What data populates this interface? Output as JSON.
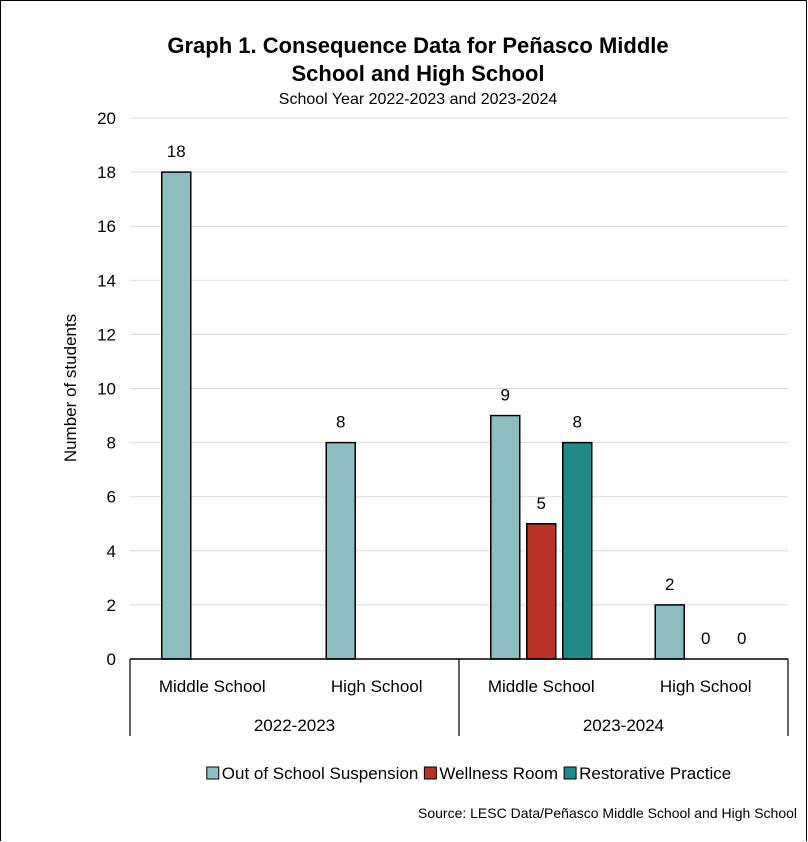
{
  "chart_data": {
    "type": "bar",
    "title_line1": "Graph 1. Consequence Data for Peñasco Middle",
    "title_line2": "School and High School",
    "subtitle": "School Year 2022-2023 and 2023-2024",
    "ylabel": "Number of students",
    "ylim": [
      0,
      20
    ],
    "yticks": [
      "0",
      "2",
      "4",
      "6",
      "8",
      "10",
      "12",
      "14",
      "16",
      "18",
      "20"
    ],
    "groups": [
      {
        "label": "2022-2023",
        "categories": [
          "Middle School",
          "High School"
        ]
      },
      {
        "label": "2023-2024",
        "categories": [
          "Middle School",
          "High School"
        ]
      }
    ],
    "categories": [
      "Middle School",
      "High School",
      "Middle School",
      "High School"
    ],
    "series": [
      {
        "name": "Out of School Suspension",
        "color": "#8dbcc1",
        "values": [
          18,
          8,
          9,
          2
        ]
      },
      {
        "name": "Wellness Room",
        "color": "#b93226",
        "values": [
          null,
          null,
          5,
          0
        ]
      },
      {
        "name": "Restorative Practice",
        "color": "#1e8a8a",
        "values": [
          null,
          null,
          8,
          0
        ]
      }
    ],
    "legend_position": "bottom",
    "grid": true,
    "source": "Source: LESC Data/Peñasco Middle School and High School"
  }
}
